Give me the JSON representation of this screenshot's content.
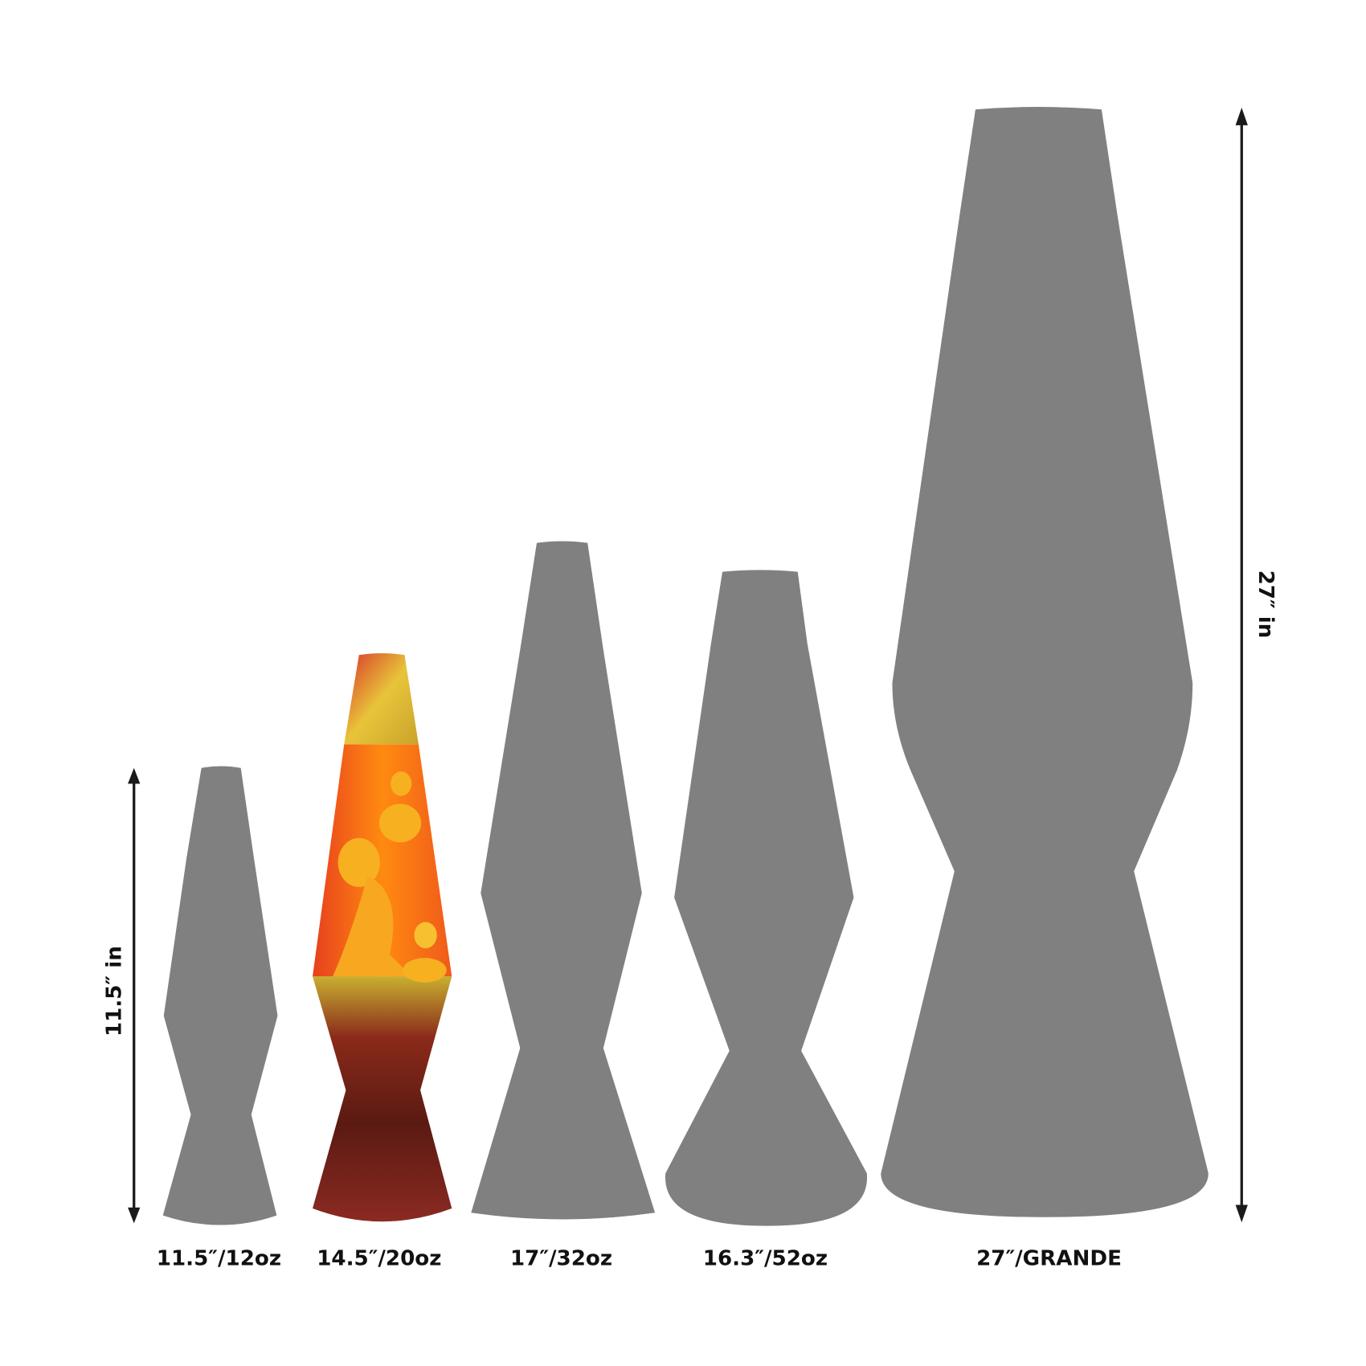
{
  "colors": {
    "silhouette": "#808080",
    "arrow": "#1a1a1a",
    "background": "#ffffff"
  },
  "lamps": [
    {
      "label": "11.5″/12oz"
    },
    {
      "label": "14.5″/20oz"
    },
    {
      "label": "17″/32oz"
    },
    {
      "label": "16.3″/52oz"
    },
    {
      "label": "27″/GRANDE"
    }
  ],
  "dimensions": {
    "left": "11.5″ in",
    "right": "27″ in"
  }
}
